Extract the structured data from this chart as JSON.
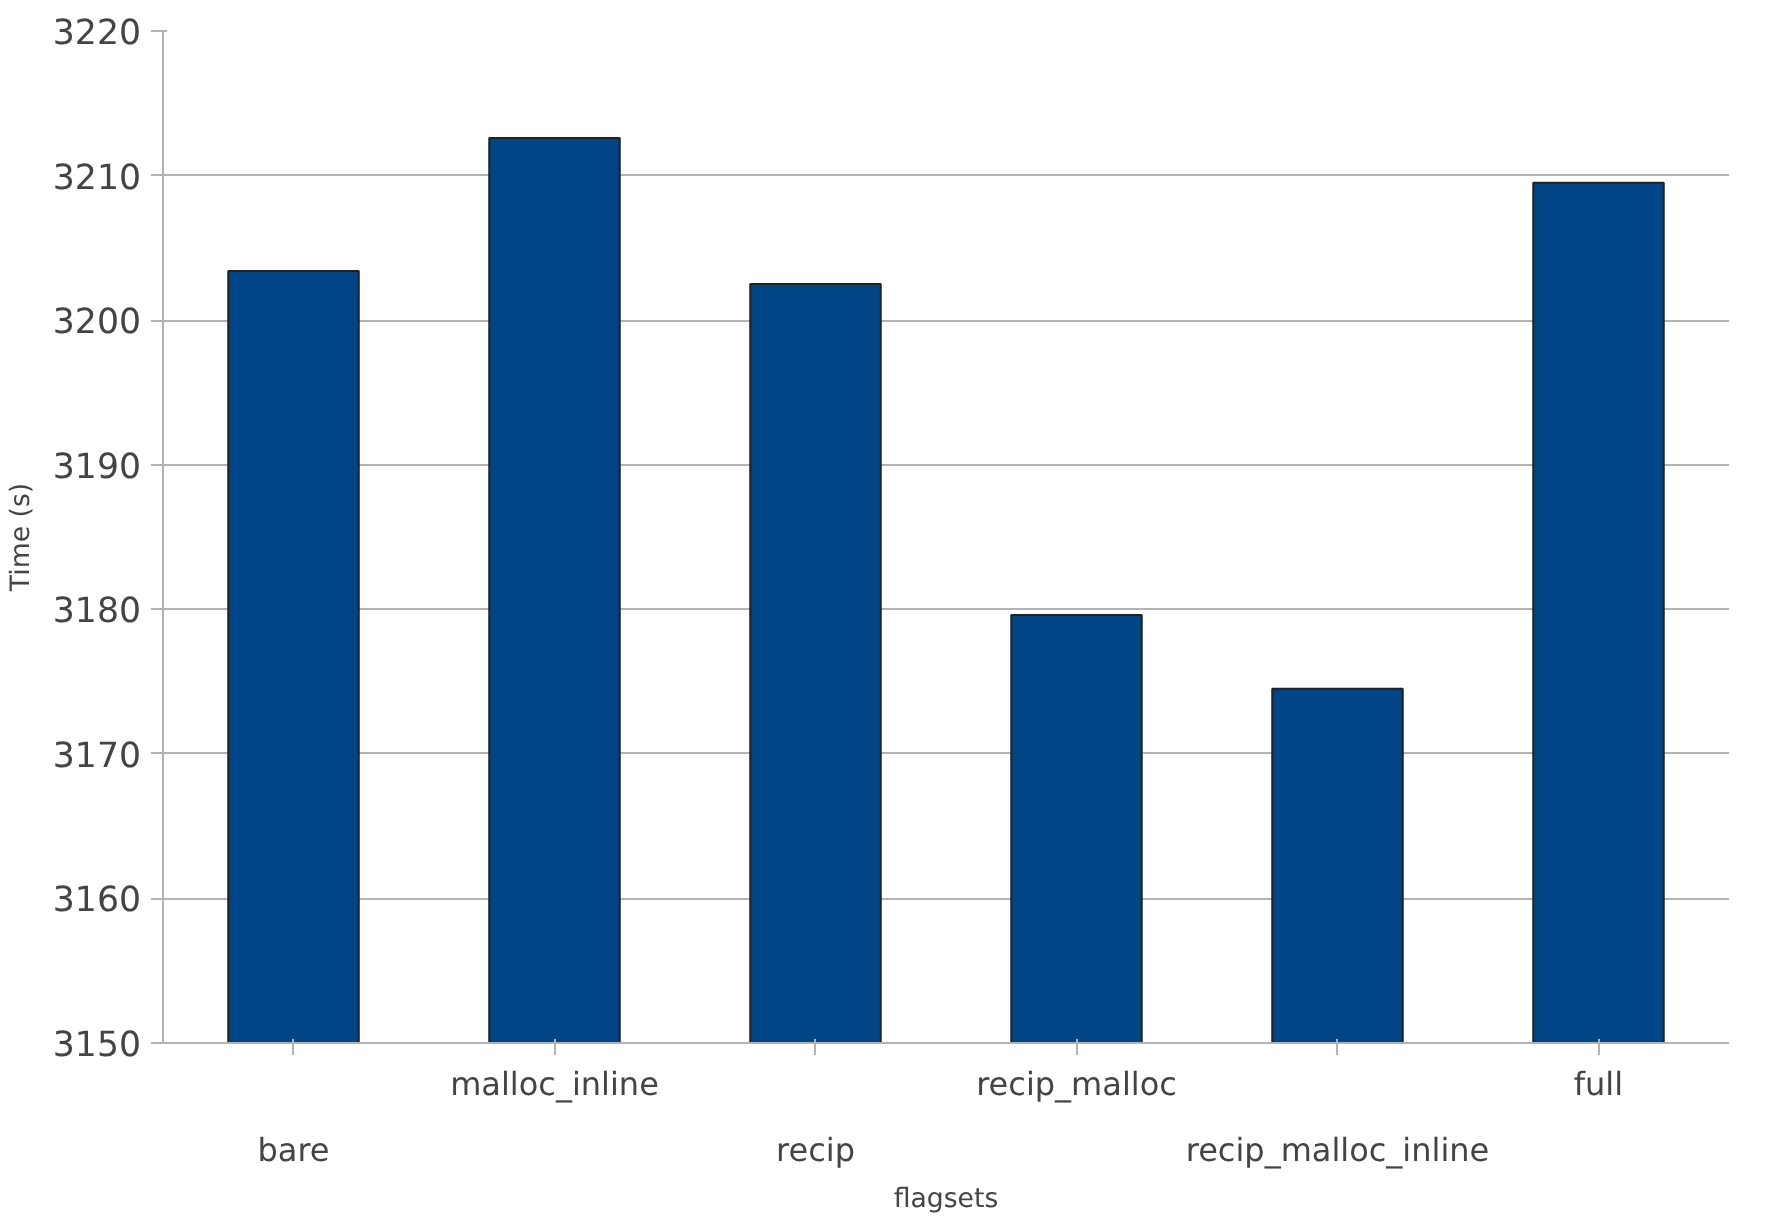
{
  "chart_data": {
    "type": "bar",
    "xlabel": "flagsets",
    "ylabel": "Time (s)",
    "categories": [
      "bare",
      "malloc_inline",
      "recip",
      "recip_malloc",
      "recip_malloc_inline",
      "full"
    ],
    "values": [
      3203.4,
      3212.6,
      3202.5,
      3179.6,
      3174.5,
      3209.5
    ],
    "color": "#004586",
    "ylim": [
      3150,
      3220
    ],
    "yticks": [
      3150,
      3160,
      3170,
      3180,
      3190,
      3200,
      3210,
      3220
    ],
    "grid": "y"
  }
}
